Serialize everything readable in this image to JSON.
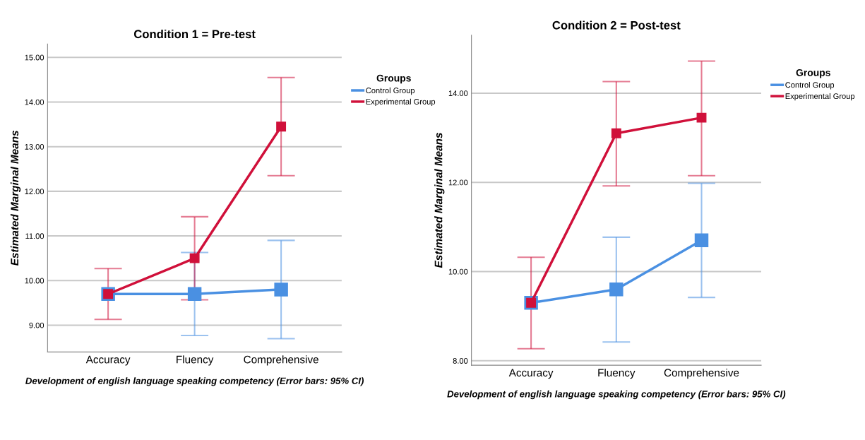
{
  "chart_data": [
    {
      "type": "line",
      "title": "Condition 1 = Pre-test",
      "xlabel": "Development of english language speaking competency (Error bars: 95% CI)",
      "ylabel": "Estimated Marginal Means",
      "legend_title": "Groups",
      "legend": "right",
      "grid": "y",
      "marker": "square",
      "line_style": "solid",
      "categories": [
        "Accuracy",
        "Fluency",
        "Comprehensive"
      ],
      "ylim": [
        8.4,
        15.3
      ],
      "yticks": [
        {
          "value": 9,
          "label": "9.00"
        },
        {
          "value": 10,
          "label": "10.00"
        },
        {
          "value": 11,
          "label": "11.00"
        },
        {
          "value": 12,
          "label": "12.00"
        },
        {
          "value": 13,
          "label": "13.00"
        },
        {
          "value": 14,
          "label": "14.00"
        },
        {
          "value": 15,
          "label": "15.00"
        }
      ],
      "series": [
        {
          "name": "Control Group",
          "color": "#4a90e2",
          "values": [
            9.7,
            9.7,
            9.8
          ],
          "errors": [
            null,
            [
              8.77,
              10.63
            ],
            [
              8.7,
              10.9
            ]
          ]
        },
        {
          "name": "Experimental Group",
          "color": "#d0103a",
          "values": [
            9.7,
            10.5,
            13.45
          ],
          "errors": [
            [
              9.13,
              10.27
            ],
            [
              9.57,
              11.43
            ],
            [
              12.35,
              14.55
            ]
          ]
        }
      ]
    },
    {
      "type": "line",
      "title": "Condition 2 = Post-test",
      "xlabel": "Development of english language speaking competency (Error bars: 95% CI)",
      "ylabel": "Estimated Marginal Means",
      "legend_title": "Groups",
      "legend": "right",
      "grid": "y",
      "marker": "square",
      "line_style": "solid",
      "categories": [
        "Accuracy",
        "Fluency",
        "Comprehensive"
      ],
      "ylim": [
        7.9,
        15.3
      ],
      "yticks": [
        {
          "value": 8,
          "label": "8.00"
        },
        {
          "value": 10,
          "label": "10.00"
        },
        {
          "value": 12,
          "label": "12.00"
        },
        {
          "value": 14,
          "label": "14.00"
        }
      ],
      "series": [
        {
          "name": "Control Group",
          "color": "#4a90e2",
          "values": [
            9.3,
            9.6,
            10.7
          ],
          "errors": [
            null,
            [
              8.42,
              10.77
            ],
            [
              9.42,
              11.98
            ]
          ]
        },
        {
          "name": "Experimental Group",
          "color": "#d0103a",
          "values": [
            9.3,
            13.1,
            13.45
          ],
          "errors": [
            [
              8.27,
              10.32
            ],
            [
              11.92,
              14.26
            ],
            [
              12.15,
              14.72
            ]
          ]
        }
      ]
    }
  ]
}
